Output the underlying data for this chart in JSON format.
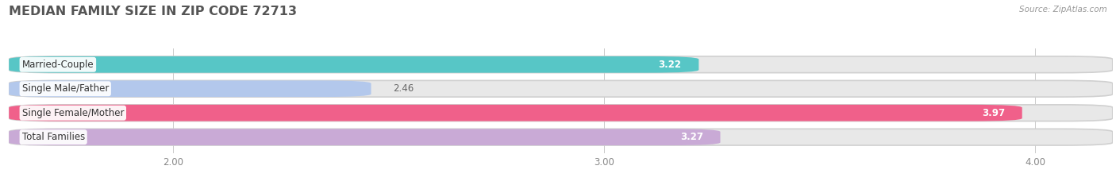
{
  "title": "MEDIAN FAMILY SIZE IN ZIP CODE 72713",
  "source": "Source: ZipAtlas.com",
  "categories": [
    "Married-Couple",
    "Single Male/Father",
    "Single Female/Mother",
    "Total Families"
  ],
  "values": [
    3.22,
    2.46,
    3.97,
    3.27
  ],
  "bar_colors": [
    "#57c6c6",
    "#b3c8ec",
    "#f0608a",
    "#c9aad6"
  ],
  "label_text_colors": [
    "#555555",
    "#555555",
    "#555555",
    "#555555"
  ],
  "value_inside": [
    true,
    false,
    true,
    true
  ],
  "background_color": "#ffffff",
  "bar_bg_color": "#e8e8e8",
  "xlim": [
    1.62,
    4.18
  ],
  "xticks": [
    2.0,
    3.0,
    4.0
  ],
  "label_fontsize": 8.5,
  "value_fontsize": 8.5,
  "title_fontsize": 11.5
}
